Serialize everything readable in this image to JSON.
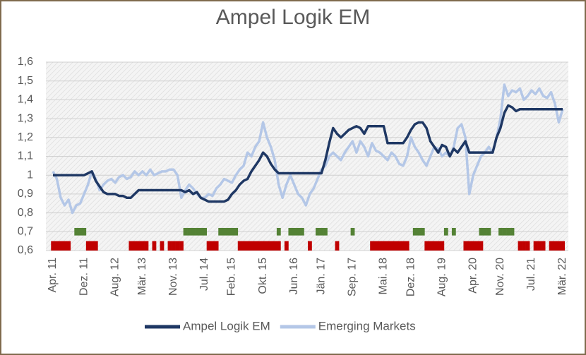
{
  "chart_data": {
    "type": "line",
    "title": "Ampel Logik EM",
    "categories": [
      "Apr. 11",
      null,
      null,
      null,
      null,
      null,
      null,
      null,
      "Dez. 11",
      null,
      null,
      null,
      null,
      null,
      null,
      null,
      "Aug. 12",
      null,
      null,
      null,
      null,
      null,
      null,
      "Mär. 13",
      null,
      null,
      null,
      null,
      null,
      null,
      null,
      "Nov. 13",
      null,
      null,
      null,
      null,
      null,
      null,
      null,
      "Jul. 14",
      null,
      null,
      null,
      null,
      null,
      null,
      "Feb. 15",
      null,
      null,
      null,
      null,
      null,
      null,
      null,
      "Okt. 15",
      null,
      null,
      null,
      null,
      null,
      null,
      null,
      "Jun. 16",
      null,
      null,
      null,
      null,
      null,
      null,
      "Jän. 17",
      null,
      null,
      null,
      null,
      null,
      null,
      null,
      "Sep. 17",
      null,
      null,
      null,
      null,
      null,
      null,
      null,
      "Mai. 18",
      null,
      null,
      null,
      null,
      null,
      null,
      "Dez. 18",
      null,
      null,
      null,
      null,
      null,
      null,
      null,
      "Aug. 19",
      null,
      null,
      null,
      null,
      null,
      null,
      null,
      "Apr. 20",
      null,
      null,
      null,
      null,
      null,
      null,
      "Nov. 20",
      null,
      null,
      null,
      null,
      null,
      null,
      null,
      "Jul. 21",
      null,
      null,
      null,
      null,
      null,
      null,
      null,
      "Mär. 22"
    ],
    "series": [
      {
        "name": "Ampel Logik EM",
        "color": "#1f3864",
        "values": [
          1,
          1,
          1,
          1,
          1,
          1,
          1,
          1,
          1,
          1.01,
          1.02,
          0.97,
          0.94,
          0.91,
          0.9,
          0.9,
          0.9,
          0.89,
          0.89,
          0.88,
          0.88,
          0.9,
          0.92,
          0.92,
          0.92,
          0.92,
          0.92,
          0.92,
          0.92,
          0.92,
          0.92,
          0.92,
          0.92,
          0.92,
          0.91,
          0.92,
          0.9,
          0.91,
          0.88,
          0.87,
          0.86,
          0.86,
          0.86,
          0.86,
          0.86,
          0.87,
          0.9,
          0.92,
          0.95,
          0.97,
          0.98,
          1.02,
          1.05,
          1.08,
          1.12,
          1.1,
          1.06,
          1.03,
          1.01,
          1.01,
          1.01,
          1.01,
          1.01,
          1.01,
          1.01,
          1.01,
          1.01,
          1.01,
          1.01,
          1.01,
          1.08,
          1.17,
          1.25,
          1.22,
          1.2,
          1.22,
          1.24,
          1.25,
          1.26,
          1.25,
          1.22,
          1.26,
          1.26,
          1.26,
          1.26,
          1.26,
          1.17,
          1.17,
          1.17,
          1.17,
          1.17,
          1.2,
          1.24,
          1.27,
          1.28,
          1.28,
          1.25,
          1.18,
          1.15,
          1.12,
          1.16,
          1.15,
          1.1,
          1.14,
          1.12,
          1.15,
          1.18,
          1.12,
          1.12,
          1.12,
          1.12,
          1.12,
          1.12,
          1.12,
          1.2,
          1.25,
          1.33,
          1.37,
          1.36,
          1.34,
          1.35,
          1.35,
          1.35,
          1.35,
          1.35,
          1.35,
          1.35,
          1.35,
          1.35,
          1.35,
          1.35,
          1.35
        ]
      },
      {
        "name": "Emerging Markets",
        "color": "#b4c7e7",
        "values": [
          1.02,
          0.98,
          0.88,
          0.84,
          0.87,
          0.8,
          0.84,
          0.85,
          0.9,
          0.95,
          1.02,
          0.98,
          0.92,
          0.95,
          0.97,
          0.98,
          0.96,
          0.99,
          1,
          0.98,
          0.99,
          1.02,
          1,
          1.02,
          1,
          1.03,
          1,
          1.01,
          1.02,
          1.02,
          1.03,
          1.03,
          1,
          0.88,
          0.92,
          0.95,
          0.93,
          0.9,
          0.88,
          0.88,
          0.9,
          0.89,
          0.93,
          0.95,
          0.98,
          0.97,
          0.96,
          1,
          1.03,
          1.05,
          1.12,
          1.1,
          1.15,
          1.18,
          1.28,
          1.2,
          1.15,
          1.08,
          0.95,
          0.88,
          0.95,
          1,
          0.95,
          0.9,
          0.88,
          0.84,
          0.9,
          0.93,
          0.98,
          1.03,
          1.05,
          1.1,
          1.12,
          1.1,
          1.08,
          1.12,
          1.15,
          1.18,
          1.12,
          1.18,
          1.15,
          1.1,
          1.17,
          1.13,
          1.12,
          1.1,
          1.08,
          1.12,
          1.1,
          1.06,
          1.05,
          1.1,
          1.2,
          1.15,
          1.12,
          1.08,
          1.05,
          1.1,
          1.15,
          1.14,
          1.1,
          1.12,
          1.1,
          1.15,
          1.25,
          1.27,
          1.2,
          0.9,
          1,
          1.05,
          1.1,
          1.12,
          1.15,
          1.12,
          1.2,
          1.3,
          1.48,
          1.42,
          1.45,
          1.44,
          1.46,
          1.4,
          1.42,
          1.45,
          1.43,
          1.46,
          1.42,
          1.41,
          1.44,
          1.38,
          1.28,
          1.35
        ]
      }
    ],
    "signal_bars": [
      {
        "color": "#c00000",
        "bottom": 0.6,
        "values": [
          0.65,
          0.65,
          0.65,
          0.65,
          0.65,
          null,
          null,
          null,
          null,
          0.65,
          0.65,
          0.65,
          null,
          null,
          null,
          null,
          null,
          null,
          null,
          null,
          0.65,
          0.65,
          0.65,
          0.65,
          0.65,
          null,
          0.65,
          null,
          0.65,
          null,
          0.65,
          0.65,
          0.65,
          0.65,
          null,
          null,
          null,
          null,
          null,
          null,
          0.65,
          0.65,
          0.65,
          null,
          null,
          null,
          null,
          null,
          0.65,
          0.65,
          0.65,
          0.65,
          0.65,
          0.65,
          0.65,
          0.65,
          0.65,
          0.65,
          0.65,
          null,
          0.65,
          null,
          null,
          null,
          null,
          null,
          0.65,
          null,
          null,
          null,
          null,
          null,
          null,
          0.65,
          null,
          null,
          null,
          null,
          null,
          null,
          null,
          null,
          0.65,
          0.65,
          0.65,
          0.65,
          0.65,
          0.65,
          0.65,
          0.65,
          0.65,
          0.65,
          null,
          null,
          null,
          null,
          0.65,
          0.65,
          0.65,
          0.65,
          0.65,
          null,
          null,
          null,
          null,
          null,
          0.65,
          0.65,
          0.65,
          0.65,
          0.65,
          null,
          null,
          null,
          null,
          null,
          null,
          null,
          null,
          null,
          0.65,
          0.65,
          0.65,
          null,
          0.65,
          0.65,
          0.65,
          null,
          0.65,
          0.65,
          0.65,
          0.65
        ]
      },
      {
        "color": "#548235",
        "bottom": 0.68,
        "values": [
          null,
          null,
          null,
          null,
          null,
          null,
          0.72,
          0.72,
          0.72,
          null,
          null,
          null,
          null,
          null,
          null,
          null,
          null,
          null,
          null,
          null,
          null,
          null,
          null,
          null,
          null,
          null,
          null,
          null,
          null,
          null,
          null,
          null,
          null,
          null,
          0.72,
          0.72,
          0.72,
          0.72,
          0.72,
          0.72,
          null,
          null,
          null,
          0.72,
          0.72,
          0.72,
          0.72,
          0.72,
          null,
          null,
          null,
          null,
          null,
          null,
          null,
          null,
          null,
          null,
          0.72,
          null,
          null,
          0.72,
          0.72,
          0.72,
          0.72,
          null,
          null,
          null,
          0.72,
          0.72,
          0.72,
          null,
          null,
          null,
          null,
          null,
          null,
          0.72,
          null,
          null,
          null,
          null,
          null,
          null,
          null,
          null,
          null,
          null,
          null,
          null,
          null,
          null,
          null,
          0.72,
          0.72,
          0.72,
          null,
          null,
          null,
          null,
          null,
          0.72,
          null,
          0.72,
          null,
          null,
          null,
          null,
          null,
          null,
          0.72,
          0.72,
          0.72,
          null,
          null,
          0.72,
          0.72,
          0.72,
          0.72,
          null,
          null,
          null,
          null,
          null,
          null,
          null,
          null,
          null,
          null,
          null,
          null,
          null
        ]
      }
    ],
    "ylim": [
      0.6,
      1.6
    ],
    "yticks": [
      {
        "value": 0.6,
        "label": "0,6"
      },
      {
        "value": 0.7,
        "label": "0,7"
      },
      {
        "value": 0.8,
        "label": "0,8"
      },
      {
        "value": 0.9,
        "label": "0,9"
      },
      1,
      {
        "value": 1.1,
        "label": "1,1"
      },
      {
        "value": 1.2,
        "label": "1,2"
      },
      {
        "value": 1.3,
        "label": "1,3"
      },
      {
        "value": 1.4,
        "label": "1,4"
      },
      {
        "value": 1.5,
        "label": "1,5"
      },
      {
        "value": 1.6,
        "label": "1,6"
      }
    ],
    "grid": true,
    "legend": "bottom"
  }
}
